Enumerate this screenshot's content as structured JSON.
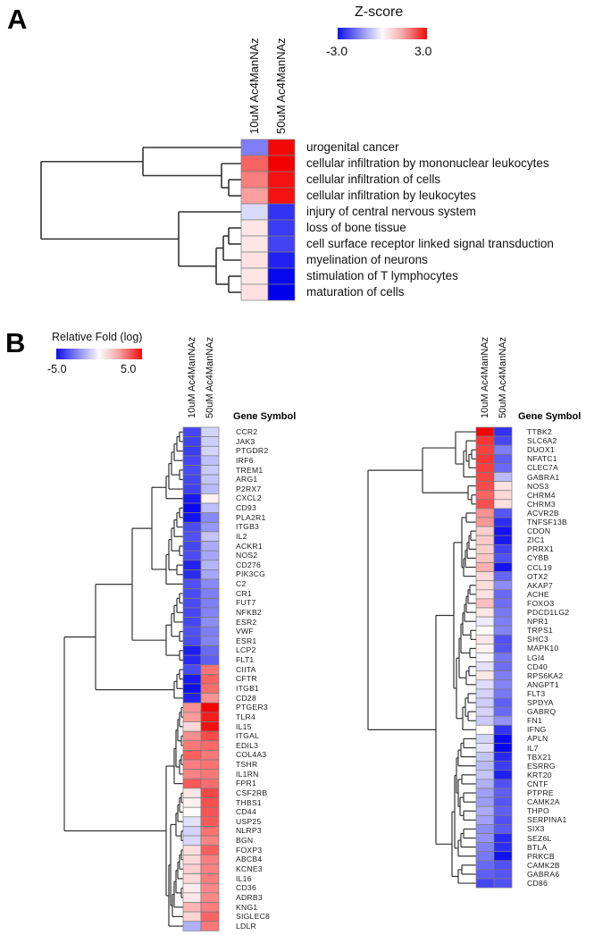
{
  "panel_a": {
    "label": "A",
    "legend": {
      "title": "Z-score",
      "min_label": "-3.0",
      "max_label": "3.0"
    }
  },
  "panel_b": {
    "label": "B",
    "legend": {
      "title": "Relative Fold (log)",
      "min_label": "-5.0",
      "max_label": "5.0"
    },
    "gene_symbol_header": "Gene Symbol"
  },
  "chart_data": [
    {
      "id": "panel-a-heatmap",
      "type": "heatmap",
      "title": "Z-score",
      "colormap": "blue-white-red",
      "value_range": [
        -3.0,
        3.0
      ],
      "legend_labels": [
        "-3.0",
        "3.0"
      ],
      "columns": [
        "10uM Ac4ManNAz",
        "50uM Ac4ManNAz"
      ],
      "rows": [
        "urogenital cancer",
        "cellular infiltration by mononuclear leukocytes",
        "cellular infiltration of cells",
        "cellular infiltration by leukocytes",
        "injury of central nervous system",
        "loss of bone tissue",
        "cell surface receptor linked signal transduction",
        "myelination of neurons",
        "stimulation of T lymphocytes",
        "maturation of cells"
      ],
      "values": [
        [
          -1.5,
          2.9
        ],
        [
          1.8,
          3.0
        ],
        [
          1.5,
          2.8
        ],
        [
          1.1,
          2.8
        ],
        [
          -0.4,
          -2.4
        ],
        [
          0.25,
          -2.3
        ],
        [
          0.25,
          -2.2
        ],
        [
          0.3,
          -2.6
        ],
        [
          0.25,
          -2.9
        ],
        [
          0.3,
          -3.0
        ]
      ]
    },
    {
      "id": "panel-b-left-heatmap",
      "type": "heatmap",
      "title": "Relative Fold (log)",
      "colormap": "blue-white-red",
      "value_range": [
        -5.0,
        5.0
      ],
      "legend_labels": [
        "-5.0",
        "5.0"
      ],
      "columns": [
        "10uM Ac4ManNAz",
        "50uM Ac4ManNAz"
      ],
      "rows": [
        "CCR2",
        "JAK3",
        "PTGDR2",
        "IRF6",
        "TREM1",
        "ARG1",
        "P2RX7",
        "CXCL2",
        "CD93",
        "PLA2R1",
        "ITGB3",
        "IL2",
        "ACKR1",
        "NOS2",
        "CD276",
        "PIK3CG",
        "C2",
        "CR1",
        "FUT7",
        "NFKB2",
        "ESR2",
        "VWF",
        "ESR1",
        "LCP2",
        "FLT1",
        "CIITA",
        "CFTR",
        "ITGB1",
        "CD28",
        "PTGER3",
        "TLR4",
        "IL15",
        "ITGAL",
        "EDIL3",
        "COL4A3",
        "TSHR",
        "IL1RN",
        "FPR1",
        "CSF2RB",
        "THBS1",
        "CD44",
        "USP25",
        "NLRP3",
        "BGN",
        "FOXP3",
        "ABCB4",
        "KCNE3",
        "IL16",
        "CD36",
        "ADRB3",
        "KNG1",
        "SIGLEC8",
        "LDLR"
      ],
      "values": [
        [
          -3.6,
          -0.8
        ],
        [
          -3.7,
          -0.9
        ],
        [
          -3.8,
          -0.8
        ],
        [
          -3.6,
          -1.2
        ],
        [
          -3.5,
          -1.0
        ],
        [
          -3.6,
          -1.1
        ],
        [
          -3.7,
          -1.3
        ],
        [
          -4.5,
          0.2
        ],
        [
          -4.8,
          -1.2
        ],
        [
          -4.6,
          -2.3
        ],
        [
          -3.5,
          -2.0
        ],
        [
          -3.4,
          -1.1
        ],
        [
          -3.6,
          -1.6
        ],
        [
          -3.5,
          -1.7
        ],
        [
          -4.3,
          -1.4
        ],
        [
          -4.1,
          -1.7
        ],
        [
          -3.4,
          -2.3
        ],
        [
          -3.5,
          -2.5
        ],
        [
          -3.5,
          -2.5
        ],
        [
          -3.6,
          -2.4
        ],
        [
          -3.6,
          -2.2
        ],
        [
          -3.4,
          -2.5
        ],
        [
          -3.5,
          -2.4
        ],
        [
          -4.4,
          -2.9
        ],
        [
          -4.2,
          -3.1
        ],
        [
          -3.5,
          2.7
        ],
        [
          -4.5,
          3.0
        ],
        [
          -4.7,
          2.8
        ],
        [
          -4.3,
          2.1
        ],
        [
          2.1,
          4.9
        ],
        [
          1.9,
          4.4
        ],
        [
          0.7,
          4.7
        ],
        [
          2.2,
          3.5
        ],
        [
          2.6,
          2.9
        ],
        [
          3.1,
          2.6
        ],
        [
          2.5,
          2.7
        ],
        [
          2.4,
          2.6
        ],
        [
          3.2,
          2.8
        ],
        [
          0.4,
          3.6
        ],
        [
          0.2,
          3.4
        ],
        [
          0.0,
          3.3
        ],
        [
          -0.5,
          3.2
        ],
        [
          -0.8,
          2.7
        ],
        [
          -0.7,
          2.4
        ],
        [
          0.6,
          3.1
        ],
        [
          0.7,
          2.5
        ],
        [
          0.9,
          2.4
        ],
        [
          0.7,
          2.5
        ],
        [
          0.3,
          2.3
        ],
        [
          0.4,
          2.3
        ],
        [
          1.4,
          2.5
        ],
        [
          0.8,
          3.0
        ],
        [
          -1.5,
          2.6
        ]
      ]
    },
    {
      "id": "panel-b-right-heatmap",
      "type": "heatmap",
      "title": "Relative Fold (log)",
      "colormap": "blue-white-red",
      "value_range": [
        -5.0,
        5.0
      ],
      "legend_labels": [
        "-5.0",
        "5.0"
      ],
      "columns": [
        "10uM Ac4ManNAz",
        "50uM Ac4ManNAz"
      ],
      "rows": [
        "TTBK2",
        "SLC6A2",
        "DUOX1",
        "NFATC1",
        "CLEC7A",
        "GABRA1",
        "NOS3",
        "CHRM4",
        "CHRM3",
        "ACVR2B",
        "TNFSF13B",
        "CDON",
        "ZIC1",
        "PRRX1",
        "CYBB",
        "CCL19",
        "OTX2",
        "AKAP7",
        "ACHE",
        "FOXO3",
        "PDCD1LG2",
        "NPR1",
        "TRPS1",
        "SHC3",
        "MAPK10",
        "LGI4",
        "CD40",
        "RPS6KA2",
        "ANGPT1",
        "FLT3",
        "SPDYA",
        "GABRQ",
        "FN1",
        "IFNG",
        "APLN",
        "IL7",
        "TBX21",
        "ESRRG",
        "KRT20",
        "CNTF",
        "PTPRE",
        "CAMK2A",
        "THPO",
        "SERPINA1",
        "SIX3",
        "SEZ6L",
        "BTLA",
        "PRKCB",
        "CAMK2B",
        "GABRA6",
        "CD86"
      ],
      "values": [
        [
          4.9,
          -4.0
        ],
        [
          3.9,
          -3.6
        ],
        [
          3.7,
          -2.5
        ],
        [
          3.9,
          -3.1
        ],
        [
          3.8,
          -2.9
        ],
        [
          3.6,
          -1.3
        ],
        [
          3.5,
          0.5
        ],
        [
          3.0,
          0.7
        ],
        [
          3.4,
          0.6
        ],
        [
          2.1,
          -3.3
        ],
        [
          2.0,
          -4.1
        ],
        [
          0.9,
          -4.6
        ],
        [
          1.0,
          -4.5
        ],
        [
          0.9,
          -3.7
        ],
        [
          1.1,
          -3.4
        ],
        [
          1.5,
          -4.6
        ],
        [
          0.7,
          -3.0
        ],
        [
          0.6,
          -2.2
        ],
        [
          0.5,
          -2.9
        ],
        [
          1.2,
          -2.8
        ],
        [
          0.4,
          -2.6
        ],
        [
          -0.3,
          -2.5
        ],
        [
          0.0,
          -2.4
        ],
        [
          0.4,
          -3.4
        ],
        [
          0.2,
          -3.3
        ],
        [
          -0.1,
          -2.6
        ],
        [
          -0.5,
          -2.8
        ],
        [
          0.4,
          -2.5
        ],
        [
          -0.6,
          -2.4
        ],
        [
          -0.8,
          -2.6
        ],
        [
          -0.9,
          -3.1
        ],
        [
          -0.8,
          -2.9
        ],
        [
          -1.0,
          -2.1
        ],
        [
          0.0,
          -4.0
        ],
        [
          -0.8,
          -4.8
        ],
        [
          -0.5,
          -4.9
        ],
        [
          -1.1,
          -4.2
        ],
        [
          -1.3,
          -3.8
        ],
        [
          -1.1,
          -4.4
        ],
        [
          -1.5,
          -3.4
        ],
        [
          -1.8,
          -3.1
        ],
        [
          -1.9,
          -3.3
        ],
        [
          -1.6,
          -3.1
        ],
        [
          -1.8,
          -3.4
        ],
        [
          -2.2,
          -3.2
        ],
        [
          -2.1,
          -4.2
        ],
        [
          -2.4,
          -4.1
        ],
        [
          -2.6,
          -4.7
        ],
        [
          -2.9,
          -3.4
        ],
        [
          -3.1,
          -3.3
        ],
        [
          -3.6,
          -3.4
        ]
      ]
    }
  ]
}
